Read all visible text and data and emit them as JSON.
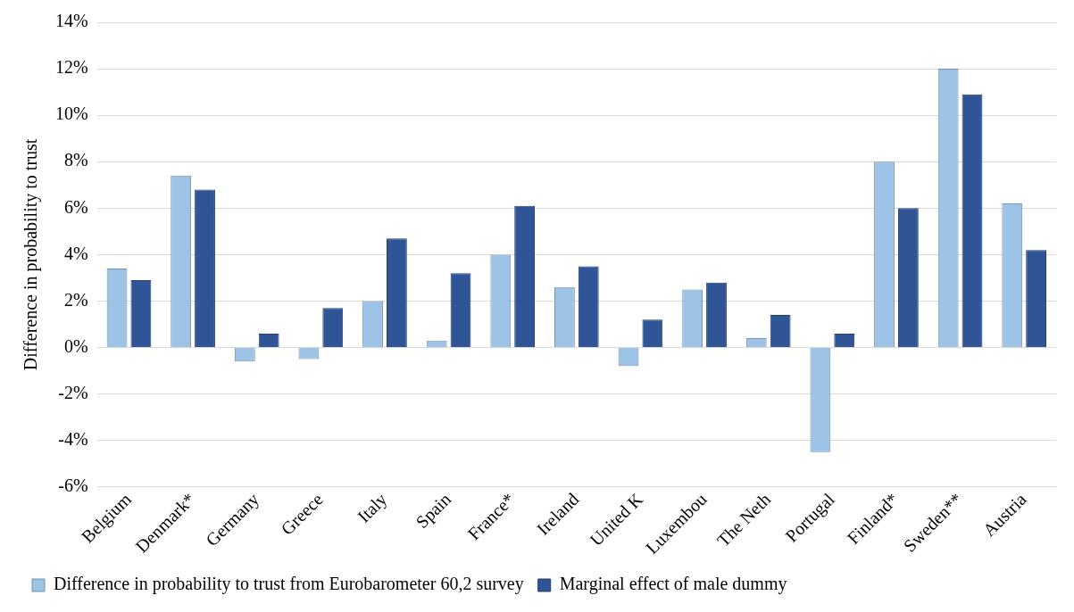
{
  "chart_data": {
    "type": "bar",
    "ylabel": "Difference in probability to trust",
    "categories": [
      "Belgium",
      "Denmark*",
      "Germany",
      "Greece",
      "Italy",
      "Spain",
      "France*",
      "Ireland",
      "United K",
      "Luxembou",
      "The Neth",
      "Portugal",
      "Finland*",
      "Sweden**",
      "Austria"
    ],
    "series": [
      {
        "name": "Difference in probability to trust from Eurobarometer 60,2 survey",
        "color": "#9dc3e6",
        "values": [
          3.4,
          7.4,
          -0.6,
          -0.5,
          2.0,
          0.3,
          4.0,
          2.6,
          -0.8,
          2.5,
          0.4,
          -4.5,
          8.0,
          12.0,
          6.2
        ]
      },
      {
        "name": "Marginal effect of male dummy",
        "color": "#2f5597",
        "values": [
          2.9,
          6.8,
          0.6,
          1.7,
          4.7,
          3.2,
          6.1,
          3.5,
          1.2,
          2.8,
          1.4,
          0.6,
          6.0,
          10.9,
          4.2
        ]
      }
    ],
    "ylim": [
      -6,
      14
    ],
    "yticks": [
      {
        "value": -6,
        "label": "-6%"
      },
      {
        "value": -4,
        "label": "-4%"
      },
      {
        "value": -2,
        "label": "-2%"
      },
      {
        "value": 0,
        "label": "0%"
      },
      {
        "value": 2,
        "label": "2%"
      },
      {
        "value": 4,
        "label": "4%"
      },
      {
        "value": 6,
        "label": "6%"
      },
      {
        "value": 8,
        "label": "8%"
      },
      {
        "value": 10,
        "label": "10%"
      },
      {
        "value": 12,
        "label": "12%"
      },
      {
        "value": 14,
        "label": "14%"
      }
    ],
    "grid": "y",
    "legend": "bottom"
  }
}
